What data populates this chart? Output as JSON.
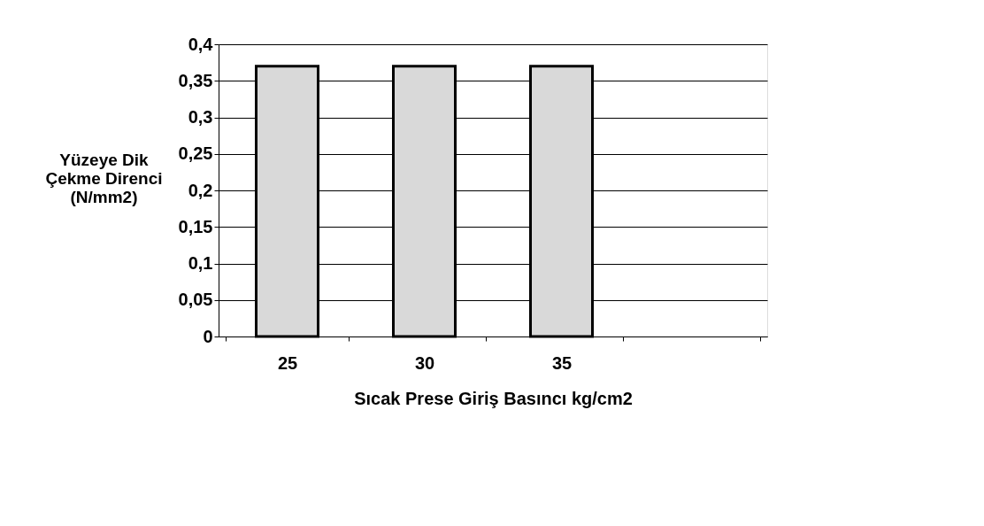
{
  "chart_data": {
    "type": "bar",
    "xlabel": "Sıcak Prese Giriş Basıncı kg/cm2",
    "ylabel": "Yüzeye Dik\nÇekme Direnci\n(N/mm2)",
    "categories": [
      "25",
      "30",
      "35",
      null
    ],
    "values": [
      0.37,
      0.37,
      0.37,
      null
    ],
    "color": "#d9d9d9",
    "ylim": [
      0,
      0.4
    ],
    "yticks": [
      0,
      {
        "value": 0.05,
        "label": "0,05"
      },
      {
        "value": 0.1,
        "label": "0,1"
      },
      {
        "value": 0.15,
        "label": "0,15"
      },
      {
        "value": 0.2,
        "label": "0,2"
      },
      {
        "value": 0.25,
        "label": "0,25"
      },
      {
        "value": 0.3,
        "label": "0,3"
      },
      {
        "value": 0.35,
        "label": "0,35"
      },
      {
        "value": 0.4,
        "label": "0,4"
      }
    ],
    "grid": "y"
  }
}
